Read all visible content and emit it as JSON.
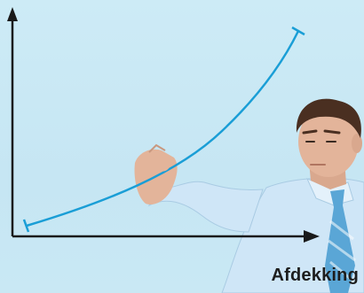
{
  "caption": "Afdekking",
  "colors": {
    "background": "#c9e8f4",
    "axis": "#1a1a1a",
    "curve": "#1a9ed6",
    "shirt": "#cfe6f7",
    "tie": "#5aa6d6",
    "skin": "#e3b49a",
    "hair": "#4a2f21"
  },
  "icons": {
    "y_axis_arrow": "arrow-up",
    "x_axis_arrow": "arrow-right"
  }
}
